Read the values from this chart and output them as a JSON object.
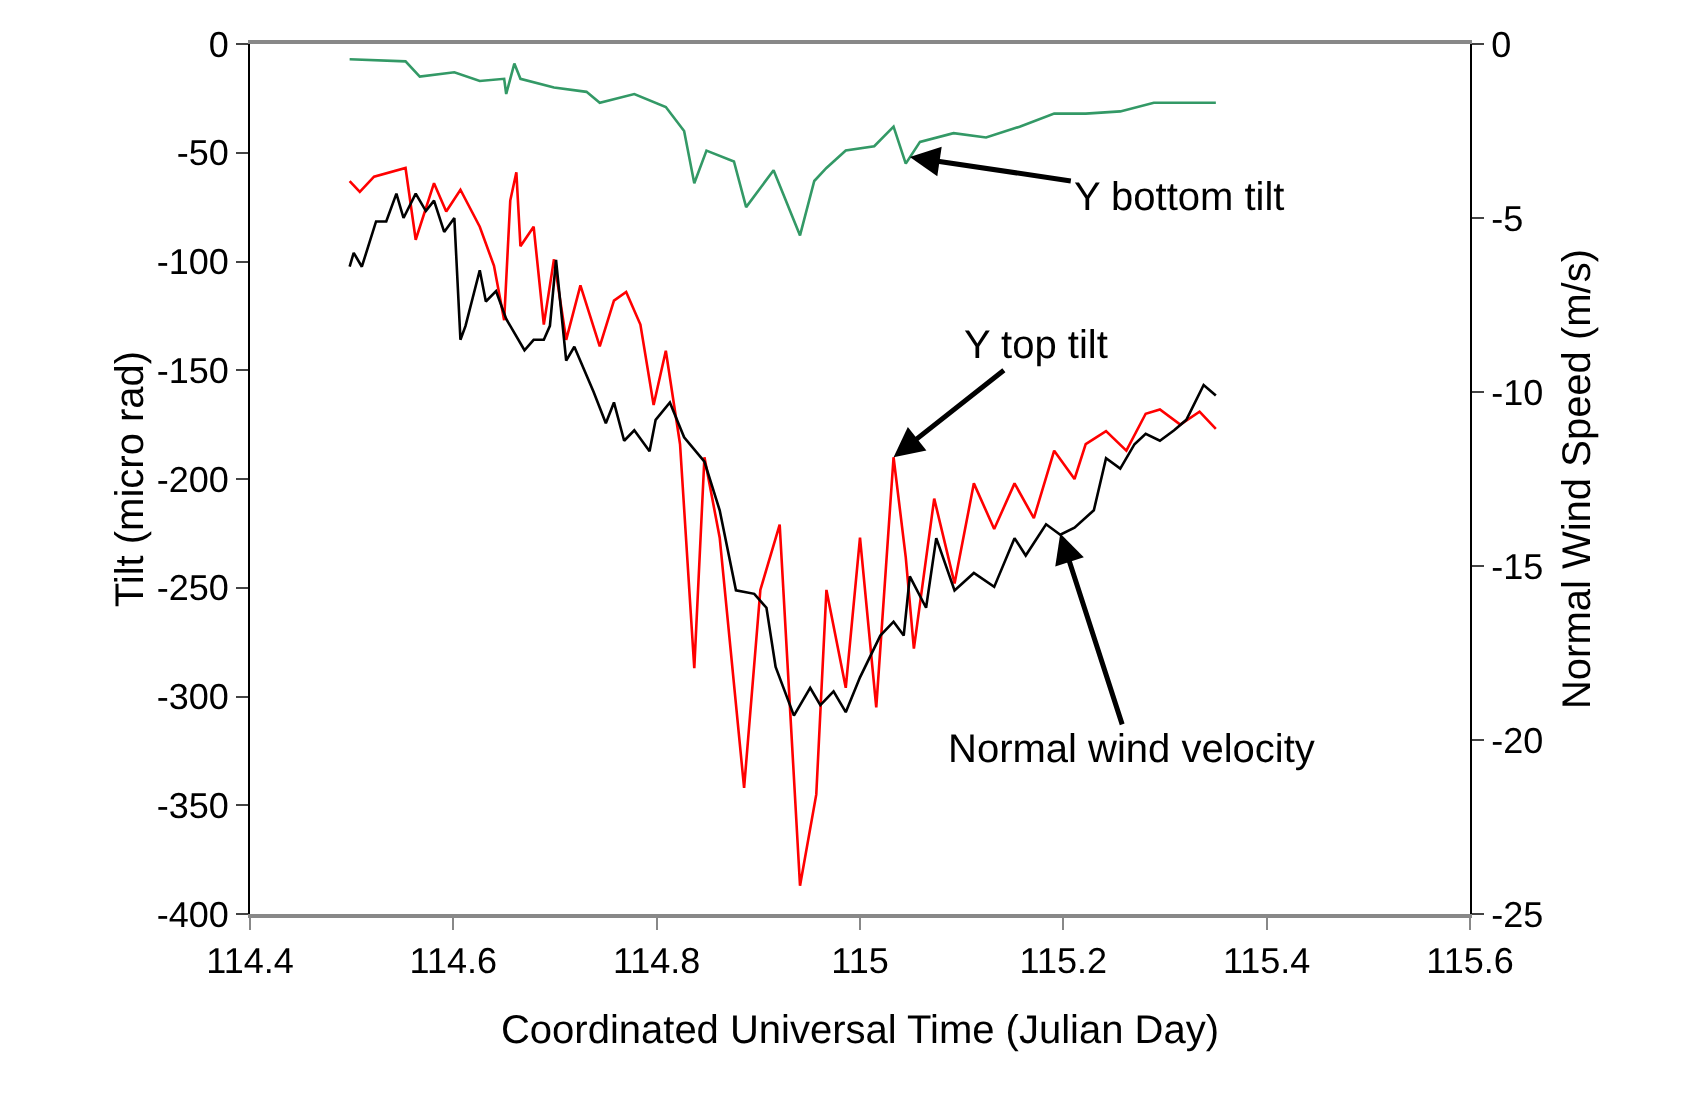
{
  "chart_data": {
    "type": "line",
    "xlabel": "Coordinated Universal Time (Julian Day)",
    "ylabel": "Tilt (micro rad)",
    "y2label": "Normal Wind Speed (m/s)",
    "xlim": [
      114.4,
      115.6
    ],
    "xticks": [
      114.4,
      114.6,
      114.8,
      115,
      115.2,
      115.4,
      115.6
    ],
    "ylim": [
      -400,
      0
    ],
    "yticks": [
      -400,
      -350,
      -300,
      -250,
      -200,
      -150,
      -100,
      -50,
      0
    ],
    "y2lim": [
      -25,
      0
    ],
    "y2ticks": [
      -25,
      -20,
      -15,
      -10,
      -5,
      0
    ],
    "line_style": "solid",
    "series": [
      {
        "color": "#339966",
        "x": [
          114.498,
          114.553,
          114.567,
          114.601,
          114.626,
          114.65,
          114.652,
          114.66,
          114.666,
          114.699,
          114.731,
          114.744,
          114.778,
          114.809,
          114.827,
          114.837,
          114.849,
          114.876,
          114.888,
          114.915,
          114.941,
          114.955,
          114.967,
          114.986,
          115.014,
          115.033,
          115.045,
          115.059,
          115.092,
          115.124,
          115.157,
          115.191,
          115.222,
          115.256,
          115.289,
          115.321,
          115.35
        ],
        "values": [
          -7,
          -8,
          -15,
          -13,
          -17,
          -16,
          -23,
          -9,
          -16,
          -20,
          -22,
          -27,
          -23,
          -29,
          -40,
          -64,
          -49,
          -54,
          -75,
          -58,
          -88,
          -63,
          -57,
          -49,
          -47,
          -38,
          -55,
          -45,
          -41,
          -43,
          -38,
          -32,
          -32,
          -31,
          -27,
          -27,
          -27
        ]
      },
      {
        "color": "#ff0000",
        "x": [
          114.498,
          114.508,
          114.522,
          114.553,
          114.563,
          114.581,
          114.593,
          114.607,
          114.626,
          114.64,
          114.65,
          114.656,
          114.662,
          114.666,
          114.679,
          114.689,
          114.699,
          114.711,
          114.725,
          114.744,
          114.758,
          114.77,
          114.784,
          114.797,
          114.809,
          114.823,
          114.837,
          114.847,
          114.862,
          114.886,
          114.902,
          114.921,
          114.941,
          114.957,
          114.967,
          114.986,
          115.0,
          115.016,
          115.033,
          115.045,
          115.053,
          115.073,
          115.093,
          115.112,
          115.132,
          115.152,
          115.171,
          115.191,
          115.211,
          115.222,
          115.242,
          115.262,
          115.281,
          115.295,
          115.315,
          115.334,
          115.35
        ],
        "values": [
          -63,
          -68,
          -61,
          -57,
          -90,
          -64,
          -77,
          -67,
          -84,
          -102,
          -127,
          -72,
          -59,
          -93,
          -84,
          -129,
          -99,
          -136,
          -111,
          -139,
          -118,
          -114,
          -129,
          -166,
          -141,
          -184,
          -287,
          -190,
          -227,
          -342,
          -251,
          -221,
          -387,
          -345,
          -251,
          -296,
          -227,
          -305,
          -190,
          -236,
          -278,
          -209,
          -248,
          -202,
          -223,
          -202,
          -218,
          -187,
          -200,
          -184,
          -178,
          -187,
          -170,
          -168,
          -175,
          -169,
          -177
        ]
      },
      {
        "color": "#000000",
        "axis": "y2",
        "x": [
          114.498,
          114.502,
          114.51,
          114.524,
          114.534,
          114.544,
          114.551,
          114.563,
          114.573,
          114.581,
          114.591,
          114.601,
          114.607,
          114.612,
          114.626,
          114.632,
          114.642,
          114.652,
          114.67,
          114.679,
          114.689,
          114.695,
          114.701,
          114.711,
          114.719,
          114.738,
          114.75,
          114.758,
          114.768,
          114.778,
          114.793,
          114.799,
          114.813,
          114.827,
          114.847,
          114.862,
          114.878,
          114.896,
          114.908,
          114.917,
          114.935,
          114.951,
          114.961,
          114.974,
          114.986,
          115.0,
          115.02,
          115.033,
          115.043,
          115.049,
          115.065,
          115.075,
          115.093,
          115.112,
          115.132,
          115.152,
          115.163,
          115.183,
          115.197,
          115.211,
          115.23,
          115.242,
          115.256,
          115.27,
          115.281,
          115.295,
          115.309,
          115.321,
          115.338,
          115.35
        ],
        "values": [
          -6.4,
          -6.0,
          -6.4,
          -5.1,
          -5.1,
          -4.3,
          -5.0,
          -4.3,
          -4.8,
          -4.5,
          -5.4,
          -5.0,
          -8.5,
          -8.1,
          -6.5,
          -7.4,
          -7.1,
          -7.9,
          -8.8,
          -8.5,
          -8.5,
          -8.1,
          -6.2,
          -9.1,
          -8.7,
          -10.0,
          -10.9,
          -10.3,
          -11.4,
          -11.1,
          -11.7,
          -10.8,
          -10.3,
          -11.3,
          -12.0,
          -13.4,
          -15.7,
          -15.8,
          -16.2,
          -17.9,
          -19.3,
          -18.5,
          -19.0,
          -18.6,
          -19.2,
          -18.2,
          -17.0,
          -16.6,
          -17.0,
          -15.3,
          -16.2,
          -14.2,
          -15.7,
          -15.2,
          -15.6,
          -14.2,
          -14.7,
          -13.8,
          -14.1,
          -13.9,
          -13.4,
          -11.9,
          -12.2,
          -11.5,
          -11.2,
          -11.4,
          -11.1,
          -10.8,
          -9.8,
          -10.1
        ]
      }
    ],
    "annotations": [
      {
        "text": "Y bottom tilt",
        "x": 115.049,
        "y": -52
      },
      {
        "text": "Y top tilt",
        "x": 115.033,
        "y": -190
      },
      {
        "text": "Normal wind velocity",
        "x": 115.197,
        "y": -225
      }
    ]
  }
}
